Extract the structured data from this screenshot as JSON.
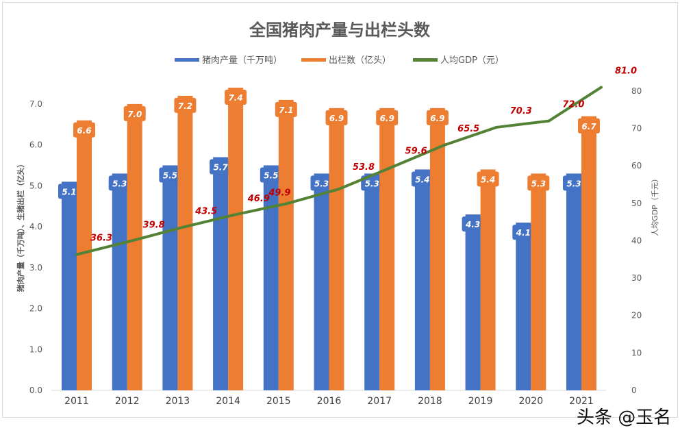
{
  "chart_data": {
    "type": "bar+line",
    "title": "全国猪肉产量与出栏头数",
    "categories": [
      "2011",
      "2012",
      "2013",
      "2014",
      "2015",
      "2016",
      "2017",
      "2018",
      "2019",
      "2020",
      "2021"
    ],
    "series": [
      {
        "name": "猪肉产量（千万吨）",
        "type": "bar",
        "axis": "left",
        "color": "#4472c4",
        "values": [
          5.1,
          5.3,
          5.5,
          5.7,
          5.5,
          5.3,
          5.3,
          5.4,
          4.3,
          4.1,
          5.3
        ]
      },
      {
        "name": "出栏数（亿头）",
        "type": "bar",
        "axis": "left",
        "color": "#ed7d31",
        "values": [
          6.6,
          7.0,
          7.2,
          7.4,
          7.1,
          6.9,
          6.9,
          6.9,
          5.4,
          5.3,
          6.7
        ]
      },
      {
        "name": "人均GDP（元）",
        "type": "line",
        "axis": "right",
        "color": "#548235",
        "label_color": "#c00000",
        "values": [
          36.3,
          39.8,
          43.5,
          46.9,
          49.9,
          53.8,
          59.6,
          65.5,
          70.3,
          72.0,
          81.0
        ]
      }
    ],
    "ylabel": "猪肉产量（千万吨）、生猪出栏（亿头）",
    "y2label": "人均GDP（千元）",
    "ylim": [
      0,
      7.5
    ],
    "y_ticks": [
      "0.0",
      "1.0",
      "2.0",
      "3.0",
      "4.0",
      "5.0",
      "6.0",
      "7.0"
    ],
    "y2lim": [
      0,
      82
    ],
    "y2_ticks": [
      "0",
      "10",
      "20",
      "30",
      "40",
      "50",
      "60",
      "70",
      "80"
    ],
    "legend": "top",
    "grid": false
  },
  "watermark": "头条 @玉名"
}
